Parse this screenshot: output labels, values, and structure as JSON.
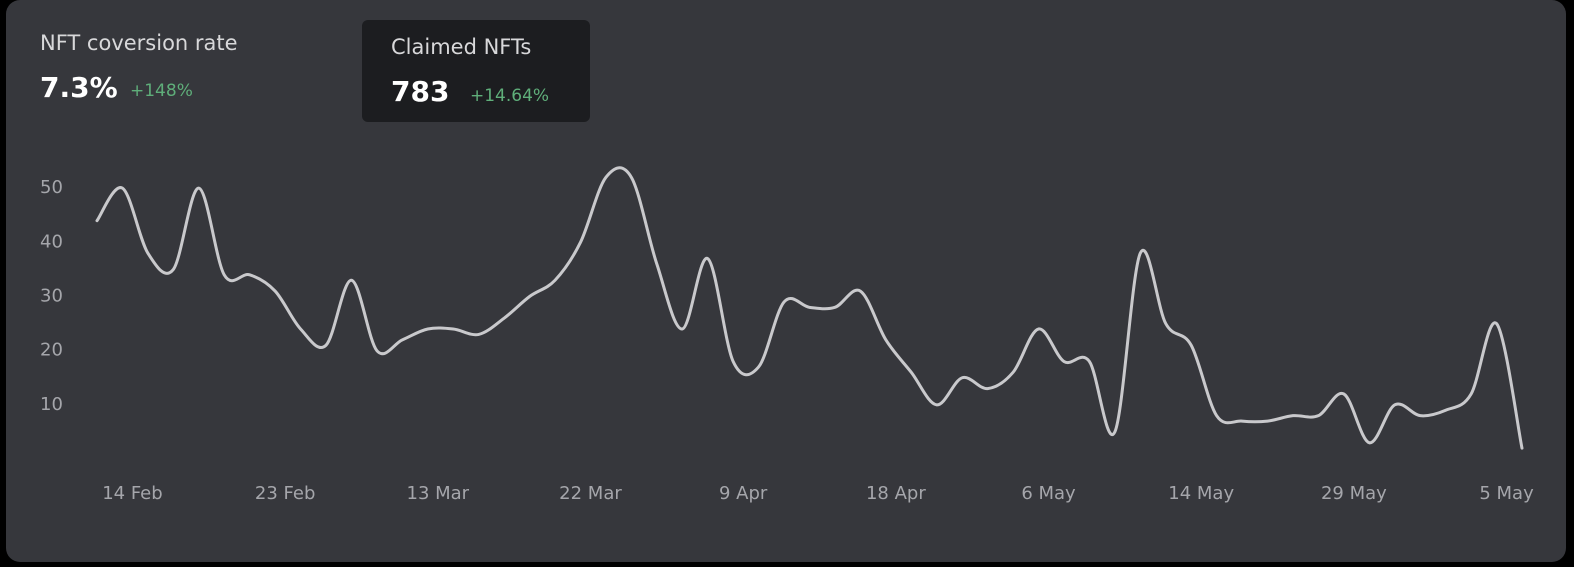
{
  "chart_data": {
    "type": "line",
    "stats": [
      {
        "label": "NFT coversion rate",
        "value": "7.3%",
        "change": "+148%"
      },
      {
        "label": "Claimed NFTs",
        "value": "783",
        "change": "+14.64%"
      }
    ],
    "categories": [
      null,
      "14 Feb",
      null,
      null,
      null,
      null,
      null,
      "23 Feb",
      null,
      null,
      null,
      null,
      null,
      "13 Mar",
      null,
      null,
      null,
      null,
      null,
      "22 Mar",
      null,
      null,
      null,
      null,
      null,
      "9 Apr",
      null,
      null,
      null,
      null,
      null,
      "18 Apr",
      null,
      null,
      null,
      null,
      null,
      "6 May",
      null,
      null,
      null,
      null,
      null,
      "14 May",
      null,
      null,
      null,
      null,
      null,
      "29 May",
      null,
      null,
      null,
      null,
      null,
      "5 May",
      null
    ],
    "values": [
      44,
      50,
      38,
      35,
      50,
      34,
      34,
      31,
      24,
      21,
      33,
      20,
      22,
      24,
      24,
      23,
      26,
      30,
      33,
      40,
      52,
      52,
      36,
      24,
      37,
      18,
      17,
      29,
      28,
      28,
      31,
      22,
      16,
      10,
      15,
      13,
      16,
      24,
      18,
      18,
      5,
      38,
      25,
      21,
      8,
      7,
      7,
      8,
      8,
      12,
      3,
      10,
      8,
      9,
      12,
      25,
      2
    ],
    "color": "#c9c9cc",
    "ylim": [
      0,
      60
    ],
    "yticks": [
      10,
      20,
      30,
      40,
      50
    ],
    "grid": false
  }
}
